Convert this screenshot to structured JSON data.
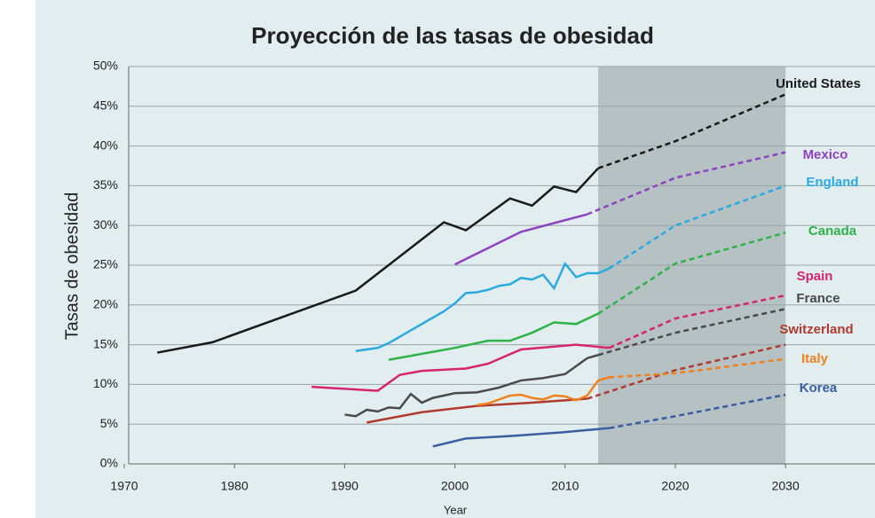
{
  "chart_data": {
    "type": "line",
    "title": "Proyección de las tasas de obesidad",
    "xlabel": "Year",
    "ylabel": "Tasas de obesidad",
    "xlim": [
      1970,
      2035
    ],
    "xticks": [
      1970,
      1980,
      1990,
      2000,
      2010,
      2020,
      2030
    ],
    "ylim": [
      0,
      50
    ],
    "yticks": [
      {
        "value": 0,
        "label": "0%"
      },
      {
        "value": 5,
        "label": "5%"
      },
      {
        "value": 10,
        "label": "10%"
      },
      {
        "value": 15,
        "label": "15%"
      },
      {
        "value": 20,
        "label": "20%"
      },
      {
        "value": 25,
        "label": "25%"
      },
      {
        "value": 30,
        "label": "30%"
      },
      {
        "value": 35,
        "label": "35%"
      },
      {
        "value": 40,
        "label": "40%"
      },
      {
        "value": 45,
        "label": "45%"
      },
      {
        "value": 50,
        "label": "50%"
      }
    ],
    "grid": true,
    "shaded_region": [
      2013,
      2030
    ],
    "series": [
      {
        "name": "United States",
        "color": "#1a1a1a",
        "dash_from": 2013,
        "x": [
          1973,
          1978,
          1991,
          1999,
          2001,
          2005,
          2007,
          2009,
          2011,
          2013,
          2020,
          2030
        ],
        "values": [
          14,
          15.3,
          21.8,
          30.4,
          29.4,
          33.4,
          32.5,
          34.9,
          34.2,
          37.2,
          40.6,
          46.5
        ]
      },
      {
        "name": "Mexico",
        "color": "#8e44c0",
        "dash_from": 2012,
        "x": [
          2000,
          2006,
          2012,
          2020,
          2030
        ],
        "values": [
          25.1,
          29.2,
          31.4,
          36,
          39.2
        ]
      },
      {
        "name": "England",
        "color": "#29abe2",
        "dash_from": 2014,
        "x": [
          1991,
          1993,
          1994,
          1996,
          1998,
          1999,
          2000,
          2001,
          2002,
          2003,
          2004,
          2005,
          2006,
          2007,
          2008,
          2009,
          2010,
          2011,
          2012,
          2013,
          2014,
          2020,
          2030
        ],
        "values": [
          14.2,
          14.6,
          15.2,
          16.8,
          18.4,
          19.2,
          20.2,
          21.5,
          21.6,
          21.9,
          22.4,
          22.6,
          23.4,
          23.2,
          23.8,
          22.1,
          25.2,
          23.5,
          24.0,
          24.0,
          24.6,
          30.0,
          35.0
        ]
      },
      {
        "name": "Canada",
        "color": "#2db34a",
        "dash_from": 2013,
        "x": [
          1994,
          2000,
          2003,
          2005,
          2007,
          2009,
          2011,
          2013,
          2020,
          2030
        ],
        "values": [
          13.1,
          14.6,
          15.5,
          15.5,
          16.5,
          17.8,
          17.6,
          18.9,
          25.2,
          29.1
        ]
      },
      {
        "name": "Spain",
        "color": "#d6246e",
        "dash_from": 2014,
        "x": [
          1987,
          1993,
          1995,
          1997,
          2001,
          2003,
          2006,
          2011,
          2014,
          2020,
          2030
        ],
        "values": [
          9.7,
          9.2,
          11.2,
          11.7,
          12.0,
          12.6,
          14.4,
          15.0,
          14.6,
          18.3,
          21.2
        ]
      },
      {
        "name": "France",
        "color": "#4a4a4a",
        "dash_from": 2013,
        "x": [
          1990,
          1991,
          1992,
          1993,
          1994,
          1995,
          1996,
          1997,
          1998,
          2000,
          2002,
          2004,
          2006,
          2008,
          2010,
          2012,
          2013,
          2020,
          2030
        ],
        "values": [
          6.2,
          6.0,
          6.8,
          6.6,
          7.1,
          7.0,
          8.8,
          7.7,
          8.3,
          8.9,
          9.0,
          9.6,
          10.5,
          10.8,
          11.3,
          13.3,
          13.7,
          16.5,
          19.5
        ]
      },
      {
        "name": "Switzerland",
        "color": "#b03a2e",
        "dash_from": 2012,
        "x": [
          1992,
          1997,
          2002,
          2007,
          2012,
          2020,
          2030
        ],
        "values": [
          5.2,
          6.5,
          7.3,
          7.7,
          8.2,
          11.8,
          15.0
        ]
      },
      {
        "name": "Italy",
        "color": "#f0821e",
        "dash_from": 2014,
        "x": [
          2002,
          2003,
          2004,
          2005,
          2006,
          2007,
          2008,
          2009,
          2010,
          2011,
          2012,
          2013,
          2014,
          2020,
          2030
        ],
        "values": [
          7.4,
          7.6,
          8.1,
          8.6,
          8.7,
          8.3,
          8.1,
          8.6,
          8.5,
          8.0,
          8.6,
          10.5,
          10.9,
          11.4,
          13.2
        ]
      },
      {
        "name": "Korea",
        "color": "#3a5fa0",
        "dash_from": 2014,
        "x": [
          1998,
          2001,
          2005,
          2010,
          2014,
          2020,
          2030
        ],
        "values": [
          2.2,
          3.2,
          3.5,
          4.0,
          4.5,
          6.0,
          8.7
        ]
      }
    ]
  }
}
